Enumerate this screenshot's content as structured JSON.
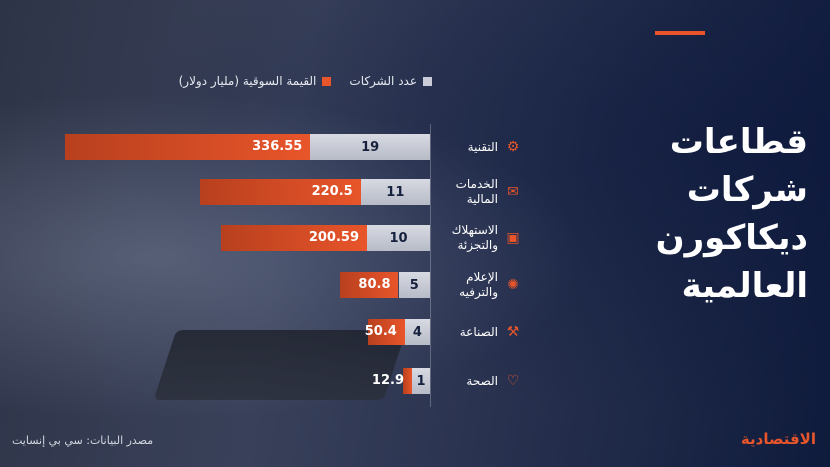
{
  "title_lines": [
    "قطاعات شركات",
    "ديكاكورن",
    "العالمية"
  ],
  "legend": {
    "count_label": "عدد الشركات",
    "value_label": "القيمة السوقية (مليار دولار)"
  },
  "source": "مصدر البيانات: سي بي إنسايت",
  "brand": "الاقتصادية",
  "colors": {
    "accent": "#e8552a",
    "count_bar": "#c9ccd6",
    "background": "#2e3447"
  },
  "chart_data": {
    "type": "bar",
    "orientation": "horizontal",
    "categories": [
      "التقنية",
      "الخدمات المالية",
      "الاستهلاك والتجزئة",
      "الإعلام والترفيه",
      "الصناعة",
      "الصحة"
    ],
    "category_icons": [
      "gear-chip-icon",
      "wallet-icon",
      "shopping-bag-icon",
      "media-gear-icon",
      "wrench-icon",
      "stethoscope-icon"
    ],
    "series": [
      {
        "name": "عدد الشركات",
        "values": [
          19,
          11,
          10,
          5,
          4,
          1
        ]
      },
      {
        "name": "القيمة السوقية (مليار دولار)",
        "values": [
          336.55,
          220.5,
          200.59,
          80.8,
          50.4,
          12.9
        ]
      }
    ],
    "stacked": true
  }
}
